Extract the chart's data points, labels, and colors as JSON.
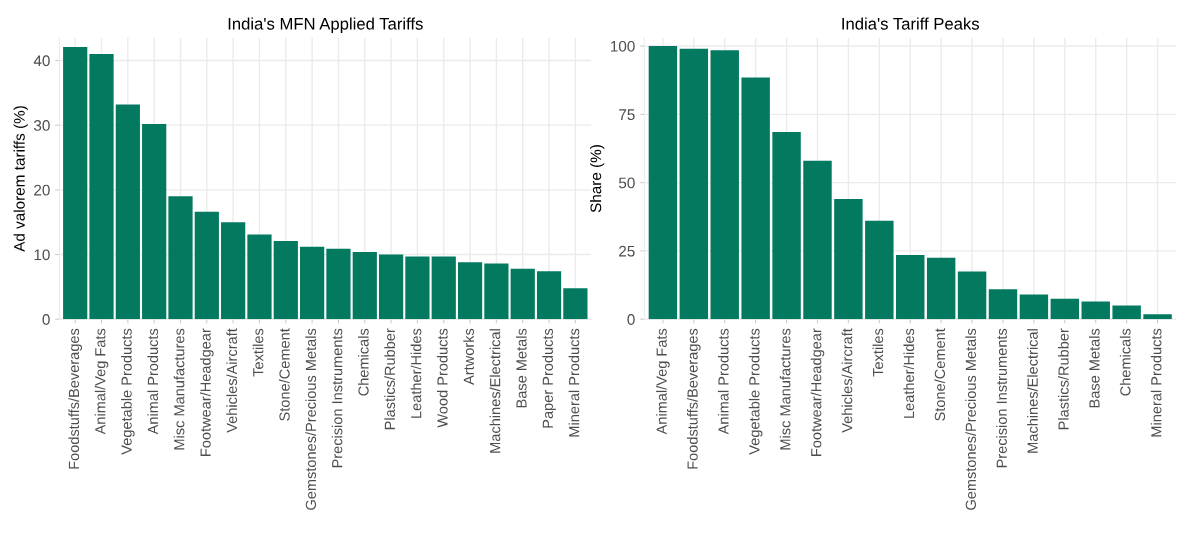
{
  "chart_data": [
    {
      "type": "bar",
      "title": "India's MFN Applied Tariffs",
      "ylabel": "Ad valorem tariffs (%)",
      "categories": [
        "Foodstuffs/Beverages",
        "Animal/Veg Fats",
        "Vegetable Products",
        "Animal Products",
        "Misc Manufactures",
        "Footwear/Headgear",
        "Vehicles/Aircraft",
        "Textiles",
        "Stone/Cement",
        "Gemstones/Precious Metals",
        "Precision Instruments",
        "Chemicals",
        "Plastics/Rubber",
        "Leather/Hides",
        "Wood Products",
        "Artworks",
        "Machines/Electrical",
        "Base Metals",
        "Paper Products",
        "Mineral Products"
      ],
      "values": [
        42.1,
        41.0,
        33.2,
        30.2,
        19.0,
        16.6,
        15.0,
        13.1,
        12.1,
        11.2,
        10.9,
        10.4,
        10.0,
        9.7,
        9.7,
        8.8,
        8.6,
        7.8,
        7.4,
        4.8
      ],
      "color": "#037a60",
      "ylim": [
        0,
        43.5
      ],
      "yticks": [
        0,
        10,
        20,
        30,
        40
      ],
      "grid": true,
      "legend": false
    },
    {
      "type": "bar",
      "title": "India's Tariff Peaks",
      "ylabel": "Share (%)",
      "categories": [
        "Animal/Veg Fats",
        "Foodstuffs/Beverages",
        "Animal Products",
        "Vegetable Products",
        "Misc Manufactures",
        "Footwear/Headgear",
        "Vehicles/Aircraft",
        "Textiles",
        "Leather/Hides",
        "Stone/Cement",
        "Gemstones/Precious Metals",
        "Precision Instruments",
        "Machines/Electrical",
        "Plastics/Rubber",
        "Base Metals",
        "Chemicals",
        "Mineral Products"
      ],
      "values": [
        100,
        99,
        98.5,
        88.5,
        68.5,
        58,
        44,
        36,
        23.5,
        22.5,
        17.5,
        11,
        9,
        7.5,
        6.5,
        5,
        1.8
      ],
      "color": "#037a60",
      "ylim": [
        0,
        103
      ],
      "yticks": [
        0,
        25,
        50,
        75,
        100
      ],
      "grid": true,
      "legend": false
    }
  ]
}
